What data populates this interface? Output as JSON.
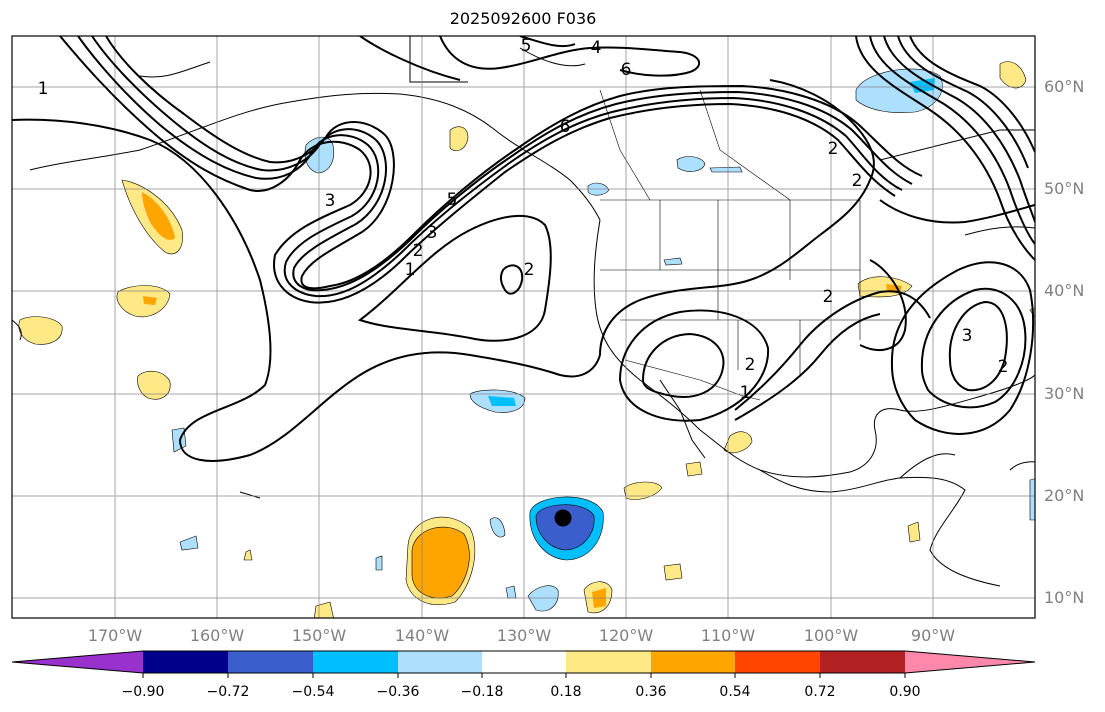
{
  "title": "2025092600 F036",
  "latitude_labels": [
    "60°N",
    "50°N",
    "40°N",
    "30°N",
    "20°N",
    "10°N"
  ],
  "longitude_labels": [
    "170°W",
    "160°W",
    "150°W",
    "140°W",
    "130°W",
    "120°W",
    "110°W",
    "100°W",
    "90°W"
  ],
  "contour_labels": [
    "1",
    "5",
    "4",
    "6",
    "6",
    "3",
    "5",
    "3",
    "2",
    "1",
    "2",
    "2",
    "2",
    "1",
    "2",
    "3",
    "2",
    "2"
  ],
  "colorbar": {
    "tick_labels": [
      "−0.90",
      "−0.72",
      "−0.54",
      "−0.36",
      "−0.18",
      "0.18",
      "0.36",
      "0.54",
      "0.72",
      "0.90"
    ],
    "colors": [
      "#9932CC",
      "#00008B",
      "#3A5FCD",
      "#00BFFF",
      "#ADDFFF",
      "#FFFFFF",
      "#FFE886",
      "#FFA500",
      "#FF4500",
      "#B22222",
      "#FF88AA"
    ]
  },
  "marker": {
    "label": "",
    "color": "#000000"
  }
}
